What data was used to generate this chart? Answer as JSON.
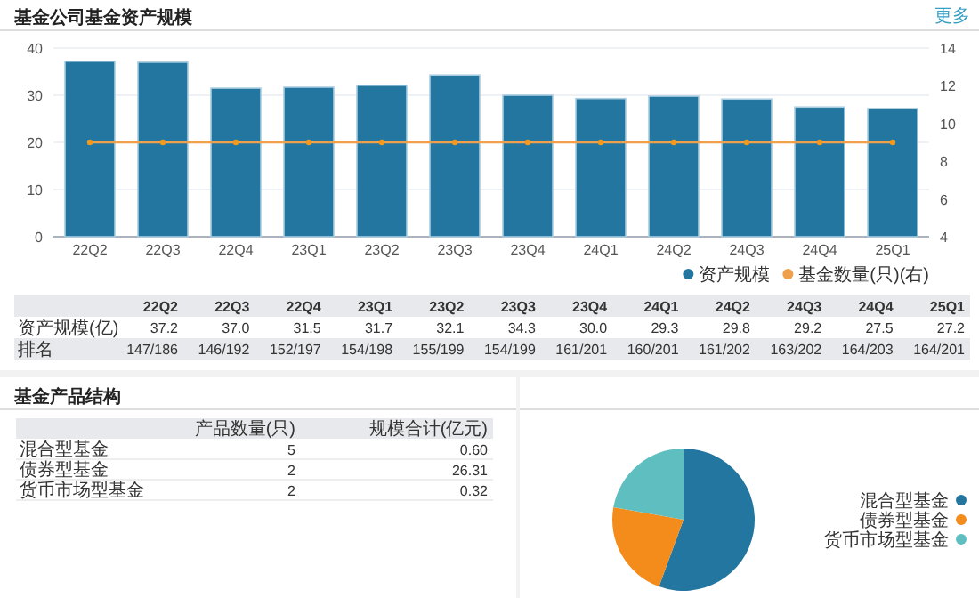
{
  "chart_data": [
    {
      "type": "bar",
      "title": "基金公司基金资产规模",
      "categories": [
        "22Q2",
        "22Q3",
        "22Q4",
        "23Q1",
        "23Q2",
        "23Q3",
        "23Q4",
        "24Q1",
        "24Q2",
        "24Q3",
        "24Q4",
        "25Q1"
      ],
      "series": [
        {
          "name": "资产规模",
          "color": "#22769f",
          "values": [
            37.2,
            37.0,
            31.5,
            31.7,
            32.1,
            34.3,
            30.0,
            29.3,
            29.8,
            29.2,
            27.5,
            27.2
          ]
        },
        {
          "name": "基金数量(只)(右)",
          "type": "line",
          "axis": "y2",
          "color": "#f0a04b",
          "values": [
            9,
            9,
            9,
            9,
            9,
            9,
            9,
            9,
            9,
            9,
            9,
            9
          ]
        }
      ],
      "ylim": [
        0,
        40
      ],
      "yticks": [
        0,
        10,
        20,
        30,
        40
      ],
      "y2lim": [
        4,
        14
      ],
      "y2ticks": [
        4,
        6,
        8,
        10,
        12,
        14
      ],
      "grid": "y",
      "legend": "bottom right",
      "marker": "circle",
      "annotations": [
        "更多",
        "资产规模(亿)",
        "排名",
        "37.2",
        "37.0",
        "31.5",
        "31.7",
        "32.1",
        "34.3",
        "30.0",
        "29.3",
        "29.8",
        "29.2",
        "27.5",
        "27.2",
        "147/186",
        "146/192",
        "152/197",
        "154/198",
        "155/199",
        "154/199",
        "161/201",
        "160/201",
        "161/202",
        "163/202",
        "164/203",
        "164/201"
      ]
    },
    {
      "type": "other",
      "title": "基金产品结构",
      "categories": [
        "混合型基金",
        "债券型基金",
        "货币市场型基金"
      ],
      "annotations": [
        "产品数量(只)",
        "规模合计(亿元)",
        "5",
        "0.60",
        "2",
        "26.31",
        "2",
        "0.32"
      ]
    },
    {
      "type": "pie",
      "categories": [
        "混合型基金",
        "债券型基金",
        "货币市场型基金"
      ],
      "values": [
        55.6,
        22.2,
        22.2
      ],
      "colors": [
        "#22769f",
        "#f48c1c",
        "#5fbfc0"
      ],
      "legend": "right"
    }
  ]
}
